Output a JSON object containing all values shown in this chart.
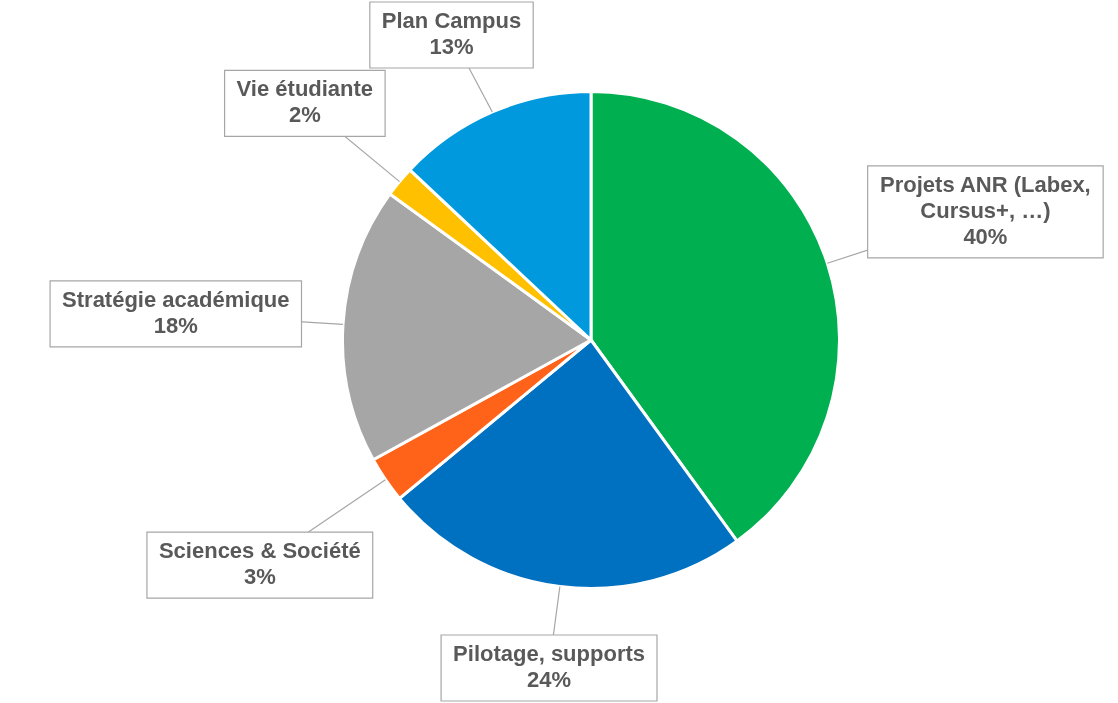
{
  "chart_data": {
    "type": "pie",
    "categories": [
      "Projets ANR (Labex, Cursus+, …)",
      "Pilotage, supports",
      "Sciences & Société",
      "Stratégie académique",
      "Vie étudiante",
      "Plan Campus"
    ],
    "values": [
      40,
      24,
      3,
      18,
      2,
      13
    ],
    "colors": [
      "#00b050",
      "#0070c0",
      "#ff6319",
      "#a6a6a6",
      "#ffc000",
      "#0099dd"
    ],
    "value_labels": [
      "40%",
      "24%",
      "3%",
      "18%",
      "2%",
      "13%"
    ],
    "legend": false
  }
}
